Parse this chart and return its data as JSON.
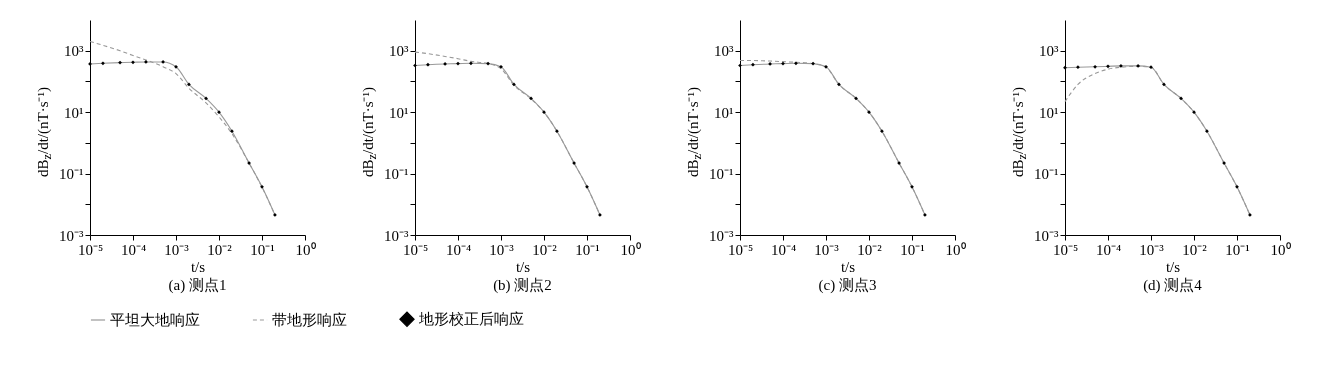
{
  "chart_data": [
    {
      "type": "line",
      "title": "(a) 测点1",
      "xlabel": "t/s",
      "ylabel": "dB$_{z}$/dt/(nT·s⁻¹)",
      "log": "xy",
      "legend": "bottom",
      "xlim": [
        1e-05,
        1
      ],
      "ylim": [
        0.001,
        10000
      ],
      "xticks": [
        {
          "value": 1e-05,
          "label": "10⁻⁵"
        },
        {
          "value": 0.0001,
          "label": "10⁻⁴"
        },
        {
          "value": 0.001,
          "label": "10⁻³"
        },
        {
          "value": 0.01,
          "label": "10⁻²"
        },
        {
          "value": 0.1,
          "label": "10⁻¹"
        },
        {
          "value": 1,
          "label": "10⁰"
        }
      ],
      "yticks": [
        {
          "value": 0.001,
          "label": "10⁻³"
        },
        {
          "value": 0.01,
          "label": null
        },
        {
          "value": 0.1,
          "label": "10⁻¹"
        },
        {
          "value": 1,
          "label": null
        },
        {
          "value": 10,
          "label": "10¹"
        },
        {
          "value": 100,
          "label": null
        },
        {
          "value": 1000,
          "label": "10³"
        }
      ],
      "x": [
        1e-05,
        2e-05,
        5e-05,
        0.0001,
        0.0002,
        0.0005,
        0.001,
        0.002,
        0.005,
        0.01,
        0.02,
        0.05,
        0.1,
        0.2
      ],
      "series": [
        {
          "name": "平坦大地响应",
          "color": "#999999",
          "line_style": "solid",
          "values": [
            370,
            390,
            410,
            420,
            430,
            430,
            300,
            80,
            28,
            10,
            2.4,
            0.22,
            0.037,
            0.0045
          ]
        },
        {
          "name": "带地形响应",
          "color": "#999999",
          "line_style": "dashed",
          "values": [
            2000,
            1500,
            1000,
            700,
            500,
            300,
            180,
            60,
            20,
            7,
            2,
            0.22,
            0.036,
            0.0045
          ]
        },
        {
          "name": "地形校正后响应",
          "type": "scatter",
          "color": "#000000",
          "marker": "diamond",
          "values": [
            370,
            390,
            410,
            420,
            430,
            430,
            300,
            80,
            28,
            10,
            2.4,
            0.22,
            0.037,
            0.0045
          ]
        }
      ]
    },
    {
      "type": "line",
      "title": "(b) 测点2",
      "xlabel": "t/s",
      "ylabel": "dB$_{z}$/dt/(nT·s⁻¹)",
      "log": "xy",
      "legend": "bottom",
      "xlim": [
        1e-05,
        1
      ],
      "ylim": [
        0.001,
        10000
      ],
      "xticks": [
        {
          "value": 1e-05,
          "label": "10⁻⁵"
        },
        {
          "value": 0.0001,
          "label": "10⁻⁴"
        },
        {
          "value": 0.001,
          "label": "10⁻³"
        },
        {
          "value": 0.01,
          "label": "10⁻²"
        },
        {
          "value": 0.1,
          "label": "10⁻¹"
        },
        {
          "value": 1,
          "label": "10⁰"
        }
      ],
      "yticks": [
        {
          "value": 0.001,
          "label": "10⁻³"
        },
        {
          "value": 0.01,
          "label": null
        },
        {
          "value": 0.1,
          "label": "10⁻¹"
        },
        {
          "value": 1,
          "label": null
        },
        {
          "value": 10,
          "label": "10¹"
        },
        {
          "value": 100,
          "label": null
        },
        {
          "value": 1000,
          "label": "10³"
        }
      ],
      "x": [
        1e-05,
        2e-05,
        5e-05,
        0.0001,
        0.0002,
        0.0005,
        0.001,
        0.002,
        0.005,
        0.01,
        0.02,
        0.05,
        0.1,
        0.2
      ],
      "series": [
        {
          "name": "平坦大地响应",
          "color": "#999999",
          "line_style": "solid",
          "values": [
            330,
            350,
            370,
            380,
            390,
            380,
            300,
            80,
            28,
            10,
            2.4,
            0.22,
            0.037,
            0.0045
          ]
        },
        {
          "name": "带地形响应",
          "color": "#999999",
          "line_style": "dashed",
          "values": [
            900,
            800,
            650,
            550,
            450,
            380,
            260,
            75,
            27,
            10,
            2.4,
            0.22,
            0.037,
            0.0045
          ]
        },
        {
          "name": "地形校正后响应",
          "type": "scatter",
          "color": "#000000",
          "marker": "diamond",
          "values": [
            330,
            350,
            370,
            380,
            390,
            380,
            300,
            80,
            28,
            10,
            2.4,
            0.22,
            0.037,
            0.0045
          ]
        }
      ]
    },
    {
      "type": "line",
      "title": "(c) 测点3",
      "xlabel": "t/s",
      "ylabel": "dB$_{z}$/dt/(nT·s⁻¹)",
      "log": "xy",
      "legend": "bottom",
      "xlim": [
        1e-05,
        1
      ],
      "ylim": [
        0.001,
        10000
      ],
      "xticks": [
        {
          "value": 1e-05,
          "label": "10⁻⁵"
        },
        {
          "value": 0.0001,
          "label": "10⁻⁴"
        },
        {
          "value": 0.001,
          "label": "10⁻³"
        },
        {
          "value": 0.01,
          "label": "10⁻²"
        },
        {
          "value": 0.1,
          "label": "10⁻¹"
        },
        {
          "value": 1,
          "label": "10⁰"
        }
      ],
      "yticks": [
        {
          "value": 0.001,
          "label": "10⁻³"
        },
        {
          "value": 0.01,
          "label": null
        },
        {
          "value": 0.1,
          "label": "10⁻¹"
        },
        {
          "value": 1,
          "label": null
        },
        {
          "value": 10,
          "label": "10¹"
        },
        {
          "value": 100,
          "label": null
        },
        {
          "value": 1000,
          "label": "10³"
        }
      ],
      "x": [
        1e-05,
        2e-05,
        5e-05,
        0.0001,
        0.0002,
        0.0005,
        0.001,
        0.002,
        0.005,
        0.01,
        0.02,
        0.05,
        0.1,
        0.2
      ],
      "series": [
        {
          "name": "平坦大地响应",
          "color": "#999999",
          "line_style": "solid",
          "values": [
            330,
            350,
            370,
            380,
            390,
            380,
            300,
            80,
            28,
            10,
            2.4,
            0.22,
            0.037,
            0.0045
          ]
        },
        {
          "name": "带地形响应",
          "color": "#999999",
          "line_style": "dashed",
          "values": [
            480,
            480,
            460,
            440,
            420,
            380,
            290,
            80,
            28,
            10,
            2.4,
            0.22,
            0.037,
            0.0045
          ]
        },
        {
          "name": "地形校正后响应",
          "type": "scatter",
          "color": "#000000",
          "marker": "diamond",
          "values": [
            330,
            350,
            370,
            380,
            390,
            380,
            300,
            80,
            28,
            10,
            2.4,
            0.22,
            0.037,
            0.0045
          ]
        }
      ]
    },
    {
      "type": "line",
      "title": "(d) 测点4",
      "xlabel": "t/s",
      "ylabel": "dB$_{z}$/dt/(nT·s⁻¹)",
      "log": "xy",
      "legend": "bottom",
      "xlim": [
        1e-05,
        1
      ],
      "ylim": [
        0.001,
        10000
      ],
      "xticks": [
        {
          "value": 1e-05,
          "label": "10⁻⁵"
        },
        {
          "value": 0.0001,
          "label": "10⁻⁴"
        },
        {
          "value": 0.001,
          "label": "10⁻³"
        },
        {
          "value": 0.01,
          "label": "10⁻²"
        },
        {
          "value": 0.1,
          "label": "10⁻¹"
        },
        {
          "value": 1,
          "label": "10⁰"
        }
      ],
      "yticks": [
        {
          "value": 0.001,
          "label": "10⁻³"
        },
        {
          "value": 0.01,
          "label": null
        },
        {
          "value": 0.1,
          "label": "10⁻¹"
        },
        {
          "value": 1,
          "label": null
        },
        {
          "value": 10,
          "label": "10¹"
        },
        {
          "value": 100,
          "label": null
        },
        {
          "value": 1000,
          "label": "10³"
        }
      ],
      "x": [
        1e-05,
        2e-05,
        5e-05,
        0.0001,
        0.0002,
        0.0005,
        0.001,
        0.002,
        0.005,
        0.01,
        0.02,
        0.05,
        0.1,
        0.2
      ],
      "series": [
        {
          "name": "平坦大地响应",
          "color": "#999999",
          "line_style": "solid",
          "values": [
            280,
            290,
            300,
            310,
            320,
            320,
            290,
            80,
            28,
            10,
            2.4,
            0.22,
            0.037,
            0.0045
          ]
        },
        {
          "name": "带地形响应",
          "color": "#999999",
          "line_style": "dashed",
          "values": [
            22,
            80,
            180,
            250,
            290,
            310,
            290,
            80,
            28,
            10,
            2.4,
            0.22,
            0.037,
            0.0045
          ]
        },
        {
          "name": "地形校正后响应",
          "type": "scatter",
          "color": "#000000",
          "marker": "diamond",
          "values": [
            280,
            290,
            300,
            310,
            320,
            320,
            290,
            80,
            28,
            10,
            2.4,
            0.22,
            0.037,
            0.0045
          ]
        }
      ]
    }
  ]
}
